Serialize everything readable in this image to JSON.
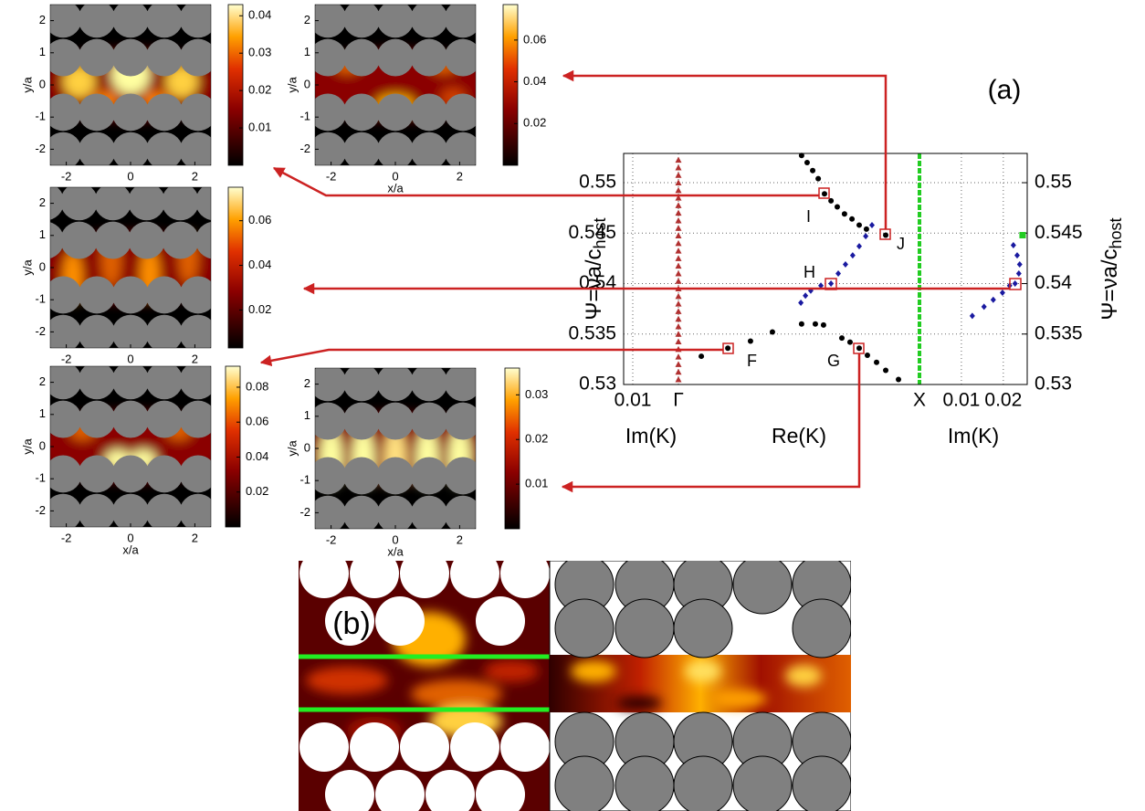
{
  "chart_data": [
    {
      "type": "scatter",
      "ylabel": {
        "text": "Ψ=νa/c",
        "sub": "host"
      },
      "y2label": {
        "text": "Ψ=νa/c",
        "sub": "host"
      },
      "ylim": [
        0.53,
        0.5529
      ],
      "yticks": [
        0.53,
        0.535,
        0.54,
        0.545,
        0.55
      ],
      "y2lim": [
        0.53,
        0.5529
      ],
      "y2ticks": [
        0.53,
        0.535,
        0.54,
        0.545,
        0.55
      ],
      "grid": true,
      "panels": [
        {
          "xlabel": "Im(K)",
          "xlim": [
            0.012,
            0
          ],
          "xticks": [
            0.01
          ]
        },
        {
          "xlabel": "Re(K)",
          "xlim": [
            0,
            1
          ],
          "xticks": [
            {
              "value": 0,
              "label": "Γ"
            },
            {
              "value": 1,
              "label": "X"
            }
          ]
        },
        {
          "xlabel": "Im(K)",
          "xlim": [
            0,
            0.0257
          ],
          "xticks": [
            0.01,
            0.02
          ]
        }
      ],
      "series": [
        {
          "panel": 1,
          "marker": "triangle",
          "color": "#b03030",
          "x": [
            0,
            0,
            0,
            0,
            0,
            0,
            0,
            0,
            0,
            0,
            0,
            0,
            0,
            0,
            0,
            0,
            0,
            0,
            0,
            0,
            0,
            0,
            0,
            0,
            0,
            0,
            0,
            0,
            0,
            0
          ],
          "values": [
            0.5305,
            0.53125,
            0.532,
            0.53275,
            0.5335,
            0.53425,
            0.535,
            0.53575,
            0.5365,
            0.53725,
            0.538,
            0.53875,
            0.5395,
            0.54025,
            0.541,
            0.54175,
            0.5425,
            0.54325,
            0.544,
            0.54475,
            0.5455,
            0.54625,
            0.547,
            0.54775,
            0.5485,
            0.54925,
            0.55,
            0.55075,
            0.5515,
            0.55225
          ]
        },
        {
          "panel": 1,
          "marker": "circle",
          "color": "#000000",
          "x": [
            0.095,
            0.205,
            0.299,
            0.39,
            0.511,
            0.568,
            0.511,
            0.534,
            0.557,
            0.58,
            0.606,
            0.633,
            0.659,
            0.689,
            0.72,
            0.75,
            0.78,
            0.86,
            0.602,
            0.678,
            0.712,
            0.75,
            0.784,
            0.822,
            0.86,
            0.913
          ],
          "values": [
            0.5328,
            0.5336,
            0.5343,
            0.5352,
            0.536,
            0.536,
            0.5527,
            0.552,
            0.5512,
            0.5504,
            0.5489,
            0.5482,
            0.5476,
            0.5469,
            0.5464,
            0.5458,
            0.5454,
            0.5448,
            0.5359,
            0.5346,
            0.5342,
            0.5336,
            0.5329,
            0.5322,
            0.5314,
            0.5305
          ]
        },
        {
          "panel": 1,
          "marker": "diamond",
          "color": "#1a1aa0",
          "x": [
            0.508,
            0.527,
            0.549,
            0.591,
            0.633,
            0.663,
            0.693,
            0.723,
            0.75,
            0.777,
            0.803
          ],
          "values": [
            0.5381,
            0.5388,
            0.5393,
            0.5398,
            0.54,
            0.541,
            0.5419,
            0.5428,
            0.5437,
            0.5447,
            0.5458
          ]
        },
        {
          "panel": 2,
          "marker": "diamond",
          "color": "#1a1aa0",
          "x": [
            0.0126,
            0.0154,
            0.0176,
            0.0198,
            0.0215,
            0.0228,
            0.0237,
            0.0239,
            0.0233,
            0.0224
          ],
          "values": [
            0.5368,
            0.5377,
            0.5384,
            0.5391,
            0.5398,
            0.54,
            0.541,
            0.5419,
            0.5428,
            0.5438
          ]
        },
        {
          "panel": 2,
          "marker": "square",
          "color": "#22cc22",
          "x": [
            0.0246
          ],
          "values": [
            0.5448
          ]
        }
      ],
      "point_labels": [
        "F",
        "G",
        "H",
        "I",
        "J"
      ],
      "annotations": [
        "(a)",
        "(b)"
      ]
    },
    {
      "type": "heatmap",
      "xlim": [
        -2.5,
        2.5
      ],
      "ylim": [
        -2.5,
        2.5
      ],
      "xticks": [
        -2,
        0,
        2
      ],
      "yticks": [
        -2,
        -1,
        0,
        1,
        2
      ],
      "ylabel": "y/a",
      "clim": [
        0,
        0.043
      ],
      "cticks": [
        0.01,
        0.02,
        0.03,
        0.04
      ]
    },
    {
      "type": "heatmap",
      "xlim": [
        -2.5,
        2.5
      ],
      "ylim": [
        -2.5,
        2.5
      ],
      "xticks": [
        -2,
        0,
        2
      ],
      "yticks": [
        -2,
        -1,
        0,
        1,
        2
      ],
      "xlabel": "x/a",
      "ylabel": "y/a",
      "clim": [
        0,
        0.077
      ],
      "cticks": [
        0.02,
        0.04,
        0.06
      ]
    },
    {
      "type": "heatmap",
      "xlim": [
        -2.5,
        2.5
      ],
      "ylim": [
        -2.5,
        2.5
      ],
      "xticks": [
        -2,
        0,
        2
      ],
      "yticks": [
        -2,
        -1,
        0,
        1,
        2
      ],
      "ylabel": "y/a",
      "clim": [
        0.003,
        0.075
      ],
      "cticks": [
        0.02,
        0.04,
        0.06
      ]
    },
    {
      "type": "heatmap",
      "xlim": [
        -2.5,
        2.5
      ],
      "ylim": [
        -2.5,
        2.5
      ],
      "xticks": [
        -2,
        0,
        2
      ],
      "yticks": [
        -2,
        -1,
        0,
        1,
        2
      ],
      "xlabel": "x/a",
      "ylabel": "y/a",
      "clim": [
        0,
        0.092
      ],
      "cticks": [
        0.02,
        0.04,
        0.06,
        0.08
      ]
    },
    {
      "type": "heatmap",
      "xlim": [
        -2.5,
        2.5
      ],
      "ylim": [
        -2.5,
        2.5
      ],
      "xticks": [
        -2,
        0,
        2
      ],
      "yticks": [
        -2,
        -1,
        0,
        1,
        2
      ],
      "xlabel": "x/a",
      "ylabel": "y/a",
      "clim": [
        0,
        0.036
      ],
      "cticks": [
        0.01,
        0.02,
        0.03
      ]
    }
  ]
}
